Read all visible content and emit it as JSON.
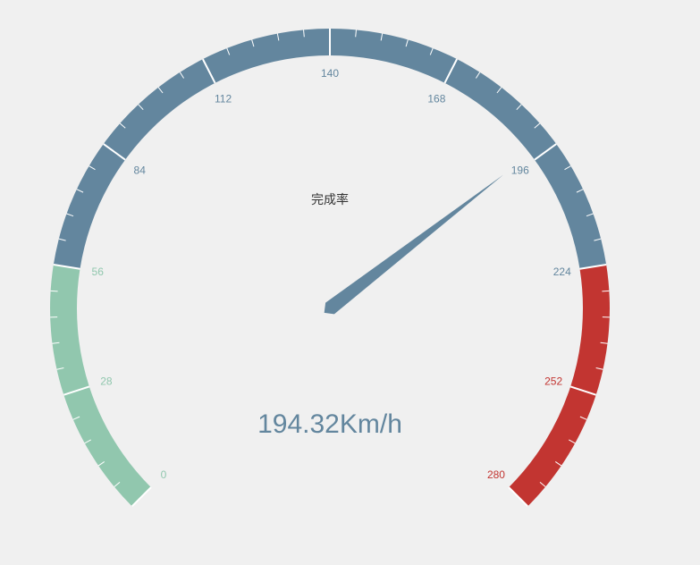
{
  "chart_data": {
    "type": "gauge",
    "title": "完成率",
    "detail": "194.32Km/h",
    "value": 194.32,
    "min": 0,
    "max": 280,
    "axis_labels": [
      "0",
      "28",
      "56",
      "84",
      "112",
      "140",
      "168",
      "196",
      "224",
      "252",
      "280"
    ],
    "ranges": [
      {
        "to": 0.2,
        "color": "#91c7ae"
      },
      {
        "to": 0.8,
        "color": "#63869e"
      },
      {
        "to": 1.0,
        "color": "#c23531"
      }
    ],
    "pointer_color": "#63869e",
    "detail_color": "#63869e"
  }
}
